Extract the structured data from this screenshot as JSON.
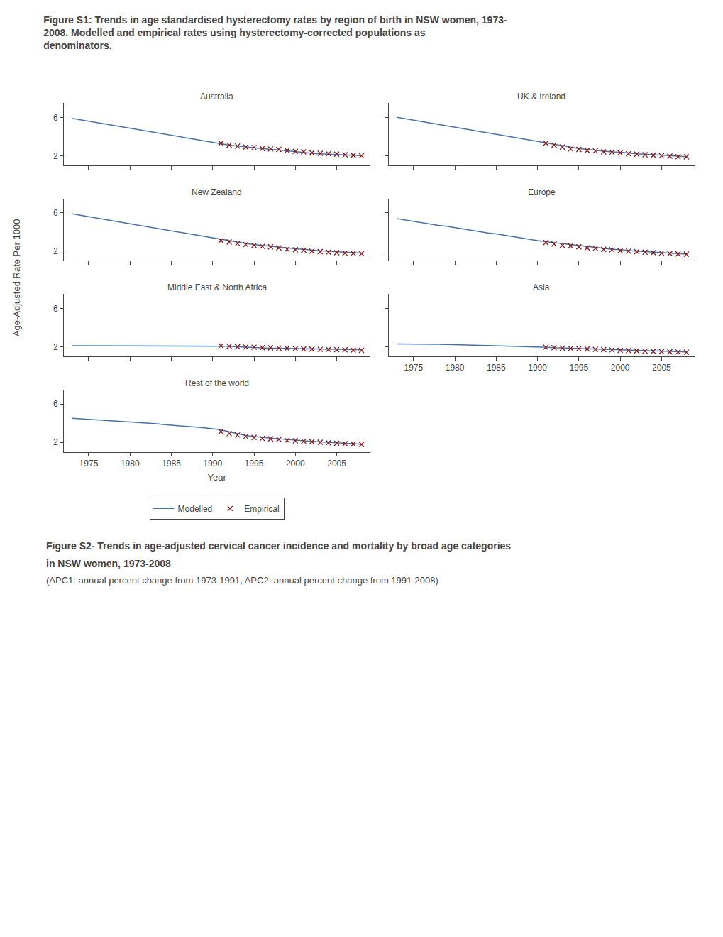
{
  "title": "Figure S1: Trends in age standardised hysterectomy rates by region of birth in NSW women, 1973-\n2008. Modelled and empirical rates using hysterectomy-corrected populations as\ndenominators.",
  "annotations": [
    "Figure S2- Trends in age-adjusted cervical cancer incidence and mortality by broad age categories",
    "in NSW women, 1973-2008",
    "(APC1: annual percent change from 1973-1991, APC2: annual percent change from 1991-2008)"
  ],
  "xlabel": "Year",
  "ylabel": "Age-Adjusted Rate Per 1000",
  "legend": "bottom",
  "chart_data": [
    {
      "type": "line",
      "title": "Australia",
      "tick_labels": "y",
      "grid": false,
      "xlim": [
        1972,
        2009
      ],
      "xticks": [
        1975,
        1980,
        1985,
        1990,
        1995,
        2000,
        2005
      ],
      "ylim": [
        1.0,
        7.5
      ],
      "yticks": [
        2,
        6
      ],
      "series": [
        {
          "name": "Modelled",
          "type": "line",
          "color": "#4472A8",
          "line_style": "solid",
          "x": [
            1973,
            1974,
            1975,
            1976,
            1977,
            1978,
            1979,
            1980,
            1981,
            1982,
            1983,
            1984,
            1985,
            1986,
            1987,
            1988,
            1989,
            1990,
            1991,
            1992,
            1993,
            1994,
            1995,
            1996,
            1997,
            1998,
            1999,
            2000,
            2001,
            2002,
            2003,
            2004,
            2005,
            2006,
            2007,
            2008
          ],
          "values": [
            5.9,
            5.75,
            5.6,
            5.45,
            5.3,
            5.15,
            5.0,
            4.85,
            4.7,
            4.55,
            4.4,
            4.25,
            4.1,
            3.95,
            3.8,
            3.65,
            3.5,
            3.35,
            3.2,
            3.1,
            3.0,
            2.9,
            2.8,
            2.7,
            2.65,
            2.6,
            2.5,
            2.4,
            2.3,
            2.25,
            2.2,
            2.15,
            2.1,
            2.1,
            2.05,
            2.0
          ]
        },
        {
          "name": "Empirical",
          "type": "scatter",
          "color": "#8B1A1A",
          "marker": "x",
          "x": [
            1991,
            1992,
            1993,
            1994,
            1995,
            1996,
            1997,
            1998,
            1999,
            2000,
            2001,
            2002,
            2003,
            2004,
            2005,
            2006,
            2007,
            2008
          ],
          "values": [
            3.3,
            3.1,
            3.0,
            2.9,
            2.85,
            2.75,
            2.7,
            2.65,
            2.55,
            2.45,
            2.4,
            2.3,
            2.25,
            2.2,
            2.15,
            2.1,
            2.05,
            2.0
          ]
        }
      ]
    },
    {
      "type": "line",
      "title": "UK & Ireland",
      "tick_labels": false,
      "grid": false,
      "xlim": [
        1972,
        2009
      ],
      "xticks": [
        1975,
        1980,
        1985,
        1990,
        1995,
        2000,
        2005
      ],
      "ylim": [
        1.0,
        7.5
      ],
      "yticks": [
        2,
        6
      ],
      "series": [
        {
          "name": "Modelled",
          "type": "line",
          "color": "#4472A8",
          "line_style": "solid",
          "x": [
            1973,
            1974,
            1975,
            1976,
            1977,
            1978,
            1979,
            1980,
            1981,
            1982,
            1983,
            1984,
            1985,
            1986,
            1987,
            1988,
            1989,
            1990,
            1991,
            1992,
            1993,
            1994,
            1995,
            1996,
            1997,
            1998,
            1999,
            2000,
            2001,
            2002,
            2003,
            2004,
            2005,
            2006,
            2007,
            2008
          ],
          "values": [
            6.0,
            5.85,
            5.7,
            5.55,
            5.4,
            5.25,
            5.1,
            4.95,
            4.8,
            4.65,
            4.5,
            4.35,
            4.2,
            4.05,
            3.9,
            3.75,
            3.6,
            3.45,
            3.3,
            3.15,
            3.0,
            2.85,
            2.75,
            2.65,
            2.55,
            2.5,
            2.4,
            2.35,
            2.25,
            2.2,
            2.15,
            2.1,
            2.05,
            2.0,
            1.95,
            1.9
          ]
        },
        {
          "name": "Empirical",
          "type": "scatter",
          "color": "#8B1A1A",
          "marker": "x",
          "x": [
            1991,
            1992,
            1993,
            1994,
            1995,
            1996,
            1997,
            1998,
            1999,
            2000,
            2001,
            2002,
            2003,
            2004,
            2005,
            2006,
            2007,
            2008
          ],
          "values": [
            3.3,
            3.1,
            2.9,
            2.7,
            2.65,
            2.55,
            2.5,
            2.4,
            2.35,
            2.3,
            2.2,
            2.15,
            2.1,
            2.05,
            2.0,
            1.95,
            1.9,
            1.88
          ]
        }
      ]
    },
    {
      "type": "line",
      "title": "New Zealand",
      "tick_labels": "y",
      "grid": false,
      "xlim": [
        1972,
        2009
      ],
      "xticks": [
        1975,
        1980,
        1985,
        1990,
        1995,
        2000,
        2005
      ],
      "ylim": [
        1.0,
        7.5
      ],
      "yticks": [
        2,
        6
      ],
      "series": [
        {
          "name": "Modelled",
          "type": "line",
          "color": "#4472A8",
          "line_style": "solid",
          "x": [
            1973,
            1974,
            1975,
            1976,
            1977,
            1978,
            1979,
            1980,
            1981,
            1982,
            1983,
            1984,
            1985,
            1986,
            1987,
            1988,
            1989,
            1990,
            1991,
            1992,
            1993,
            1994,
            1995,
            1996,
            1997,
            1998,
            1999,
            2000,
            2001,
            2002,
            2003,
            2004,
            2005,
            2006,
            2007,
            2008
          ],
          "values": [
            5.9,
            5.75,
            5.6,
            5.45,
            5.3,
            5.15,
            5.0,
            4.85,
            4.7,
            4.55,
            4.4,
            4.25,
            4.1,
            3.95,
            3.8,
            3.65,
            3.5,
            3.35,
            3.2,
            3.1,
            2.95,
            2.8,
            2.7,
            2.6,
            2.5,
            2.45,
            2.35,
            2.25,
            2.2,
            2.1,
            2.05,
            2.0,
            1.95,
            1.9,
            1.85,
            1.8
          ]
        },
        {
          "name": "Empirical",
          "type": "scatter",
          "color": "#8B1A1A",
          "marker": "x",
          "x": [
            1991,
            1992,
            1993,
            1994,
            1995,
            1996,
            1997,
            1998,
            1999,
            2000,
            2001,
            2002,
            2003,
            2004,
            2005,
            2006,
            2007,
            2008
          ],
          "values": [
            3.1,
            2.95,
            2.8,
            2.7,
            2.6,
            2.5,
            2.45,
            2.35,
            2.2,
            2.15,
            2.1,
            2.0,
            1.95,
            1.9,
            1.85,
            1.8,
            1.78,
            1.75
          ]
        }
      ]
    },
    {
      "type": "line",
      "title": "Europe",
      "tick_labels": false,
      "grid": false,
      "xlim": [
        1972,
        2009
      ],
      "xticks": [
        1975,
        1980,
        1985,
        1990,
        1995,
        2000,
        2005
      ],
      "ylim": [
        1.0,
        7.5
      ],
      "yticks": [
        2,
        6
      ],
      "series": [
        {
          "name": "Modelled",
          "type": "line",
          "color": "#4472A8",
          "line_style": "solid",
          "x": [
            1973,
            1974,
            1975,
            1976,
            1977,
            1978,
            1979,
            1980,
            1981,
            1982,
            1983,
            1984,
            1985,
            1986,
            1987,
            1988,
            1989,
            1990,
            1991,
            1992,
            1993,
            1994,
            1995,
            1996,
            1997,
            1998,
            1999,
            2000,
            2001,
            2002,
            2003,
            2004,
            2005,
            2006,
            2007,
            2008
          ],
          "values": [
            5.4,
            5.25,
            5.1,
            5.0,
            4.85,
            4.7,
            4.6,
            4.45,
            4.3,
            4.2,
            4.05,
            3.9,
            3.8,
            3.65,
            3.5,
            3.4,
            3.25,
            3.1,
            3.0,
            2.9,
            2.75,
            2.65,
            2.55,
            2.45,
            2.35,
            2.3,
            2.2,
            2.15,
            2.05,
            2.0,
            1.95,
            1.9,
            1.85,
            1.8,
            1.75,
            1.7
          ]
        },
        {
          "name": "Empirical",
          "type": "scatter",
          "color": "#8B1A1A",
          "marker": "x",
          "x": [
            1991,
            1992,
            1993,
            1994,
            1995,
            1996,
            1997,
            1998,
            1999,
            2000,
            2001,
            2002,
            2003,
            2004,
            2005,
            2006,
            2007,
            2008
          ],
          "values": [
            2.9,
            2.75,
            2.6,
            2.55,
            2.45,
            2.35,
            2.3,
            2.2,
            2.15,
            2.05,
            2.0,
            1.95,
            1.9,
            1.85,
            1.8,
            1.75,
            1.72,
            1.7
          ]
        }
      ]
    },
    {
      "type": "line",
      "title": "Middle East & North Africa",
      "tick_labels": "y",
      "grid": false,
      "xlim": [
        1972,
        2009
      ],
      "xticks": [
        1975,
        1980,
        1985,
        1990,
        1995,
        2000,
        2005
      ],
      "ylim": [
        1.0,
        7.5
      ],
      "yticks": [
        2,
        6
      ],
      "series": [
        {
          "name": "Modelled",
          "type": "line",
          "color": "#4472A8",
          "line_style": "solid",
          "x": [
            1973,
            1974,
            1975,
            1976,
            1977,
            1978,
            1979,
            1980,
            1981,
            1982,
            1983,
            1984,
            1985,
            1986,
            1987,
            1988,
            1989,
            1990,
            1991,
            1992,
            1993,
            1994,
            1995,
            1996,
            1997,
            1998,
            1999,
            2000,
            2001,
            2002,
            2003,
            2004,
            2005,
            2006,
            2007,
            2008
          ],
          "values": [
            2.1,
            2.1,
            2.1,
            2.1,
            2.1,
            2.1,
            2.1,
            2.1,
            2.1,
            2.1,
            2.1,
            2.1,
            2.1,
            2.1,
            2.1,
            2.1,
            2.1,
            2.1,
            2.1,
            2.05,
            2.0,
            1.95,
            1.9,
            1.9,
            1.85,
            1.85,
            1.85,
            1.8,
            1.8,
            1.78,
            1.75,
            1.75,
            1.73,
            1.72,
            1.7,
            1.68
          ]
        },
        {
          "name": "Empirical",
          "type": "scatter",
          "color": "#8B1A1A",
          "marker": "x",
          "x": [
            1991,
            1992,
            1993,
            1994,
            1995,
            1996,
            1997,
            1998,
            1999,
            2000,
            2001,
            2002,
            2003,
            2004,
            2005,
            2006,
            2007,
            2008
          ],
          "values": [
            2.1,
            2.05,
            2.0,
            1.97,
            1.95,
            1.9,
            1.88,
            1.85,
            1.83,
            1.8,
            1.78,
            1.75,
            1.73,
            1.72,
            1.7,
            1.68,
            1.65,
            1.62
          ]
        }
      ]
    },
    {
      "type": "line",
      "title": "Asia",
      "tick_labels": "x",
      "grid": false,
      "xlim": [
        1972,
        2009
      ],
      "xticks": [
        1975,
        1980,
        1985,
        1990,
        1995,
        2000,
        2005
      ],
      "ylim": [
        1.0,
        7.5
      ],
      "yticks": [
        2,
        6
      ],
      "series": [
        {
          "name": "Modelled",
          "type": "line",
          "color": "#4472A8",
          "line_style": "solid",
          "x": [
            1973,
            1974,
            1975,
            1976,
            1977,
            1978,
            1979,
            1980,
            1981,
            1982,
            1983,
            1984,
            1985,
            1986,
            1987,
            1988,
            1989,
            1990,
            1991,
            1992,
            1993,
            1994,
            1995,
            1996,
            1997,
            1998,
            1999,
            2000,
            2001,
            2002,
            2003,
            2004,
            2005,
            2006,
            2007,
            2008
          ],
          "values": [
            2.3,
            2.3,
            2.28,
            2.28,
            2.26,
            2.25,
            2.23,
            2.22,
            2.2,
            2.18,
            2.15,
            2.12,
            2.1,
            2.08,
            2.05,
            2.02,
            2.0,
            1.98,
            1.95,
            1.9,
            1.87,
            1.83,
            1.8,
            1.77,
            1.73,
            1.7,
            1.68,
            1.65,
            1.62,
            1.6,
            1.57,
            1.55,
            1.52,
            1.5,
            1.48,
            1.45
          ]
        },
        {
          "name": "Empirical",
          "type": "scatter",
          "color": "#8B1A1A",
          "marker": "x",
          "x": [
            1991,
            1992,
            1993,
            1994,
            1995,
            1996,
            1997,
            1998,
            1999,
            2000,
            2001,
            2002,
            2003,
            2004,
            2005,
            2006,
            2007,
            2008
          ],
          "values": [
            1.95,
            1.9,
            1.85,
            1.82,
            1.8,
            1.77,
            1.73,
            1.7,
            1.67,
            1.63,
            1.6,
            1.57,
            1.55,
            1.52,
            1.5,
            1.48,
            1.45,
            1.43
          ]
        }
      ]
    },
    {
      "type": "line",
      "title": "Rest of the world",
      "grid": false,
      "xlim": [
        1972,
        2009
      ],
      "xticks": [
        1975,
        1980,
        1985,
        1990,
        1995,
        2000,
        2005
      ],
      "ylim": [
        1.0,
        7.5
      ],
      "yticks": [
        2,
        6
      ],
      "series": [
        {
          "name": "Modelled",
          "type": "line",
          "color": "#4472A8",
          "line_style": "solid",
          "x": [
            1973,
            1974,
            1975,
            1976,
            1977,
            1978,
            1979,
            1980,
            1981,
            1982,
            1983,
            1984,
            1985,
            1986,
            1987,
            1988,
            1989,
            1990,
            1991,
            1992,
            1993,
            1994,
            1995,
            1996,
            1997,
            1998,
            1999,
            2000,
            2001,
            2002,
            2003,
            2004,
            2005,
            2006,
            2007,
            2008
          ],
          "values": [
            4.5,
            4.45,
            4.4,
            4.35,
            4.3,
            4.25,
            4.2,
            4.15,
            4.1,
            4.0,
            3.95,
            3.85,
            3.75,
            3.7,
            3.65,
            3.6,
            3.5,
            3.4,
            3.3,
            3.1,
            2.9,
            2.7,
            2.6,
            2.5,
            2.4,
            2.35,
            2.3,
            2.2,
            2.15,
            2.1,
            2.05,
            2.0,
            1.95,
            1.9,
            1.85,
            1.8
          ]
        },
        {
          "name": "Empirical",
          "type": "scatter",
          "color": "#8B1A1A",
          "marker": "x",
          "x": [
            1991,
            1992,
            1993,
            1994,
            1995,
            1996,
            1997,
            1998,
            1999,
            2000,
            2001,
            2002,
            2003,
            2004,
            2005,
            2006,
            2007,
            2008
          ],
          "values": [
            3.1,
            2.9,
            2.75,
            2.6,
            2.5,
            2.4,
            2.35,
            2.3,
            2.2,
            2.15,
            2.1,
            2.05,
            2.0,
            1.95,
            1.9,
            1.85,
            1.82,
            1.78
          ]
        }
      ]
    }
  ]
}
